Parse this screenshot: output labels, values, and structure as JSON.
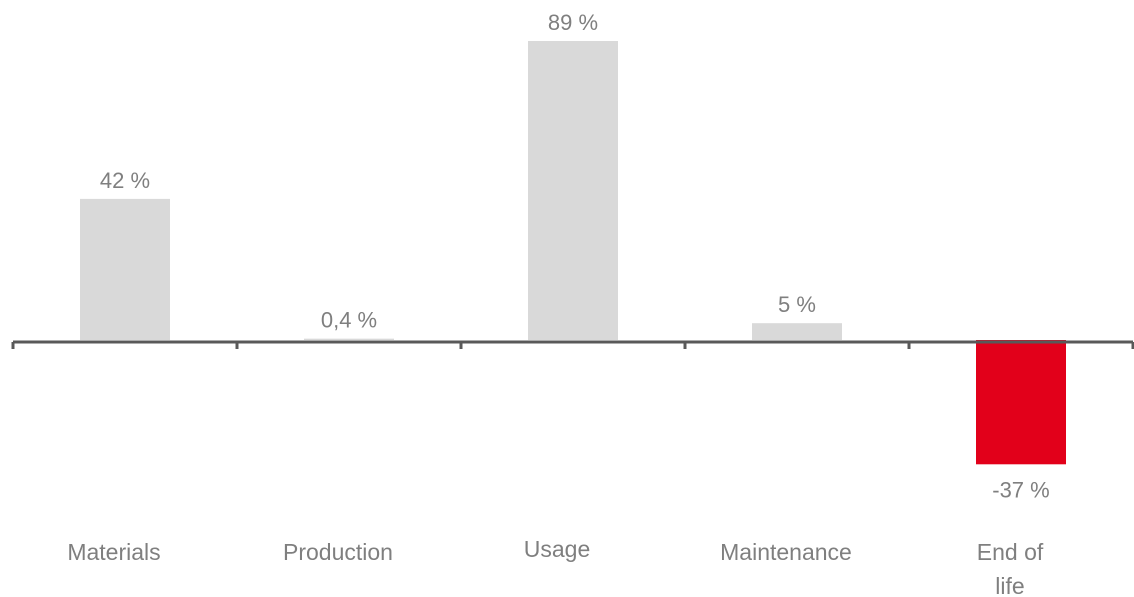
{
  "chart_data": {
    "type": "bar",
    "categories": [
      "Materials",
      "Production",
      "Usage",
      "Maintenance",
      "End of life"
    ],
    "category_lines": [
      [
        "Materials"
      ],
      [
        "Production"
      ],
      [
        "Usage"
      ],
      [
        "Maintenance"
      ],
      [
        "End of",
        "life"
      ]
    ],
    "values": [
      42,
      0.4,
      89,
      5,
      -37
    ],
    "data_labels": [
      "42 %",
      "0,4 %",
      "89 %",
      "5 %",
      "-37 %"
    ],
    "title": "",
    "xlabel": "",
    "ylabel": "",
    "ylim": [
      -37,
      89
    ],
    "grid": false,
    "legend": "none",
    "colors": {
      "positive": "#d9d9d9",
      "negative": "#e2001a",
      "axis": "#595959",
      "text": "#7f7f7f"
    }
  }
}
